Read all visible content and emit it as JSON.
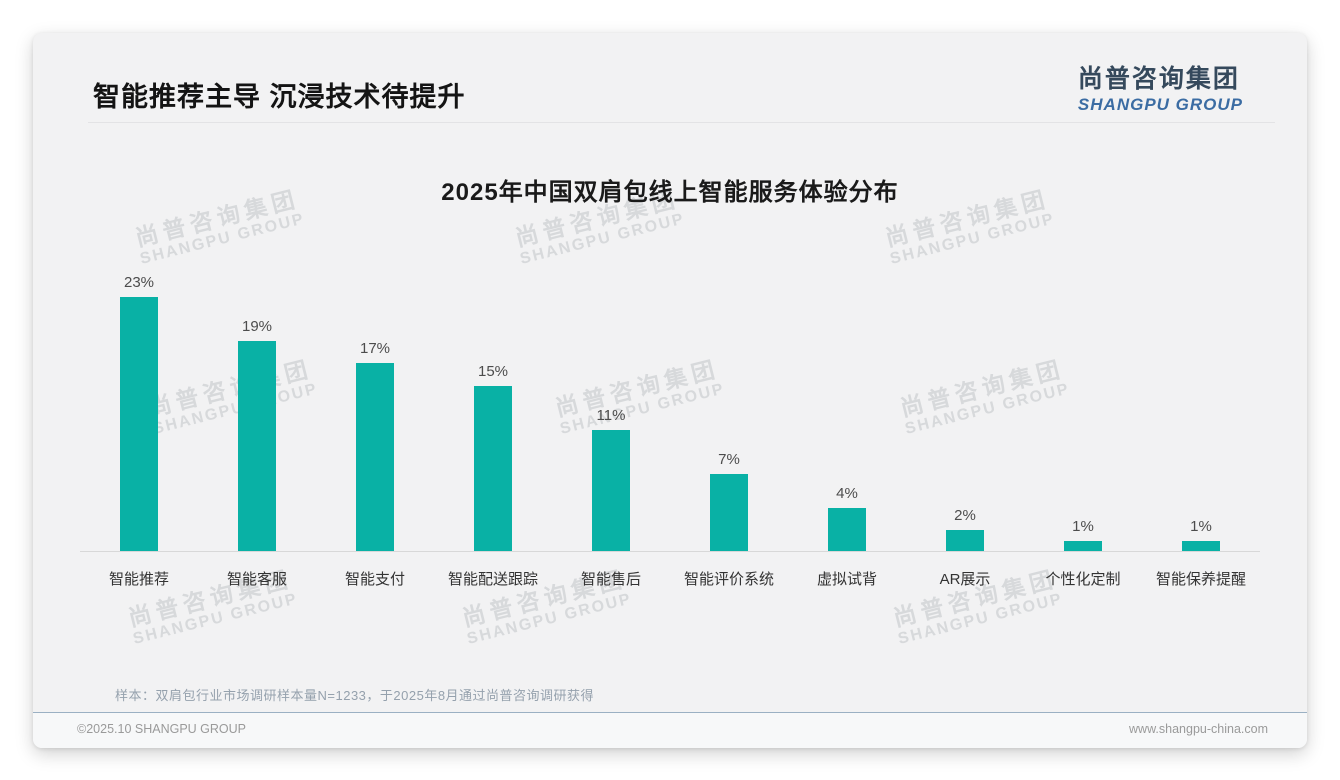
{
  "header": {
    "title": "智能推荐主导 沉浸技术待提升"
  },
  "logo": {
    "cn": "尚普咨询集团",
    "en": "SHANGPU GROUP"
  },
  "watermark": {
    "cn": "尚普咨询集团",
    "en": "SHANGPU GROUP"
  },
  "chart_data": {
    "type": "bar",
    "title": "2025年中国双肩包线上智能服务体验分布",
    "categories": [
      "智能推荐",
      "智能客服",
      "智能支付",
      "智能配送跟踪",
      "智能售后",
      "智能评价系统",
      "虚拟试背",
      "AR展示",
      "个性化定制",
      "智能保养提醒"
    ],
    "values": [
      23,
      19,
      17,
      15,
      11,
      7,
      4,
      2,
      1,
      1
    ],
    "unit": "%",
    "value_labels": true,
    "bar_color": "#09b1a5",
    "ylim": [
      0,
      25
    ],
    "grid": false,
    "legend": false
  },
  "note": "样本：双肩包行业市场调研样本量N=1233，于2025年8月通过尚普咨询调研获得",
  "footer": {
    "left": "©2025.10 SHANGPU GROUP",
    "right": "www.shangpu-china.com"
  }
}
